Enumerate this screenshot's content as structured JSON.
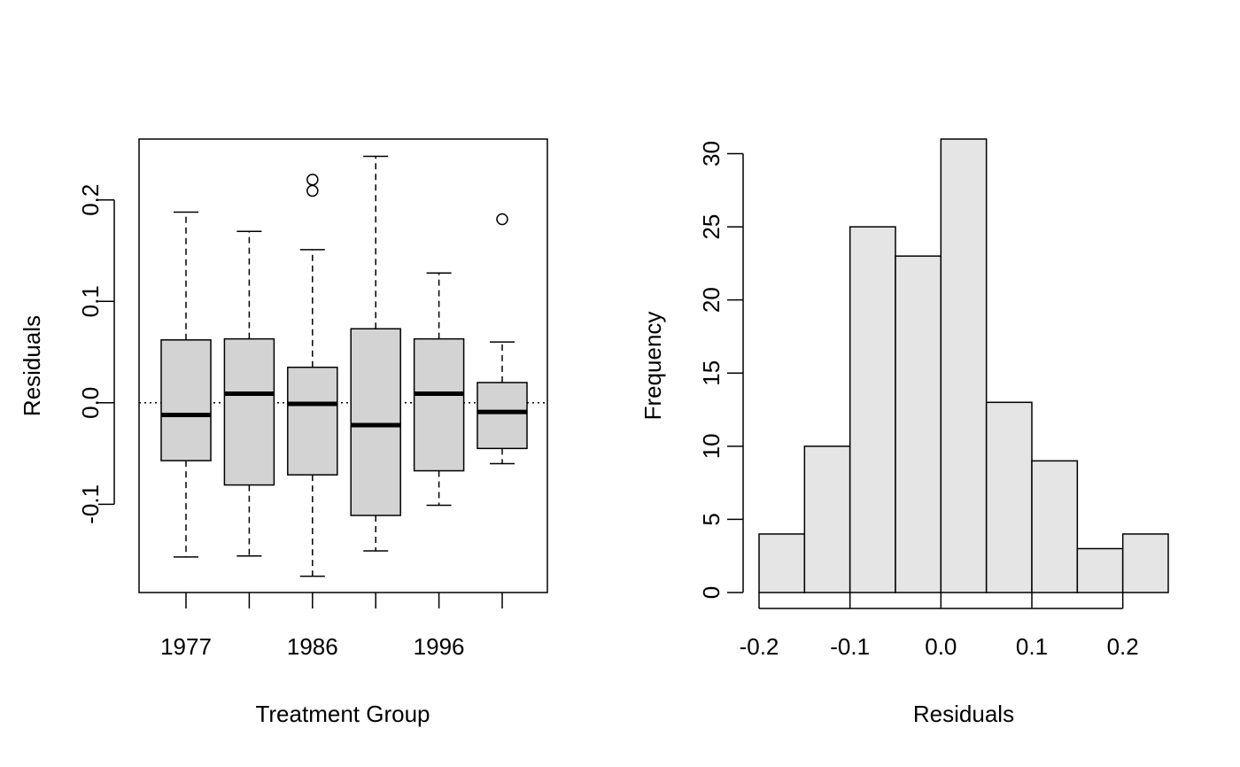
{
  "chart_data": [
    {
      "type": "box",
      "xlabel": "Treatment Group",
      "ylabel": "Residuals",
      "ylim": [
        -0.187,
        0.26
      ],
      "yticks": [
        "-0.1",
        "0.0",
        "0.1",
        "0.2"
      ],
      "ytick_values": [
        -0.1,
        0.0,
        0.1,
        0.2
      ],
      "xtick_labels": [
        "1977",
        "1986",
        "1996"
      ],
      "reference_line": 0.0,
      "groups": [
        {
          "label": "1977",
          "whisker_low": -0.152,
          "q1": -0.057,
          "median": -0.012,
          "q3": 0.062,
          "whisker_high": 0.188,
          "outliers": []
        },
        {
          "label": "",
          "whisker_low": -0.151,
          "q1": -0.081,
          "median": 0.009,
          "q3": 0.063,
          "whisker_high": 0.169,
          "outliers": []
        },
        {
          "label": "1986",
          "whisker_low": -0.171,
          "q1": -0.071,
          "median": -0.001,
          "q3": 0.035,
          "whisker_high": 0.151,
          "outliers": [
            0.209,
            0.22
          ]
        },
        {
          "label": "",
          "whisker_low": -0.146,
          "q1": -0.111,
          "median": -0.022,
          "q3": 0.073,
          "whisker_high": 0.243,
          "outliers": []
        },
        {
          "label": "1996",
          "whisker_low": -0.101,
          "q1": -0.067,
          "median": 0.009,
          "q3": 0.063,
          "whisker_high": 0.128,
          "outliers": []
        },
        {
          "label": "",
          "whisker_low": -0.06,
          "q1": -0.045,
          "median": -0.009,
          "q3": 0.02,
          "whisker_high": 0.06,
          "outliers": [
            0.181
          ]
        }
      ]
    },
    {
      "type": "histogram",
      "xlabel": "Residuals",
      "ylabel": "Frequency",
      "xlim": [
        -0.2,
        0.25
      ],
      "ylim": [
        0,
        31
      ],
      "xticks": [
        "-0.2",
        "-0.1",
        "0.0",
        "0.1",
        "0.2"
      ],
      "xtick_values": [
        -0.2,
        -0.1,
        0.0,
        0.1,
        0.2
      ],
      "yticks": [
        "0",
        "5",
        "10",
        "15",
        "20",
        "25",
        "30"
      ],
      "ytick_values": [
        0,
        5,
        10,
        15,
        20,
        25,
        30
      ],
      "bin_edges": [
        -0.2,
        -0.15,
        -0.1,
        -0.05,
        0.0,
        0.05,
        0.1,
        0.15,
        0.2,
        0.25
      ],
      "counts": [
        4,
        10,
        25,
        23,
        31,
        13,
        9,
        3,
        4
      ],
      "bar_color": "#e5e5e5"
    }
  ]
}
